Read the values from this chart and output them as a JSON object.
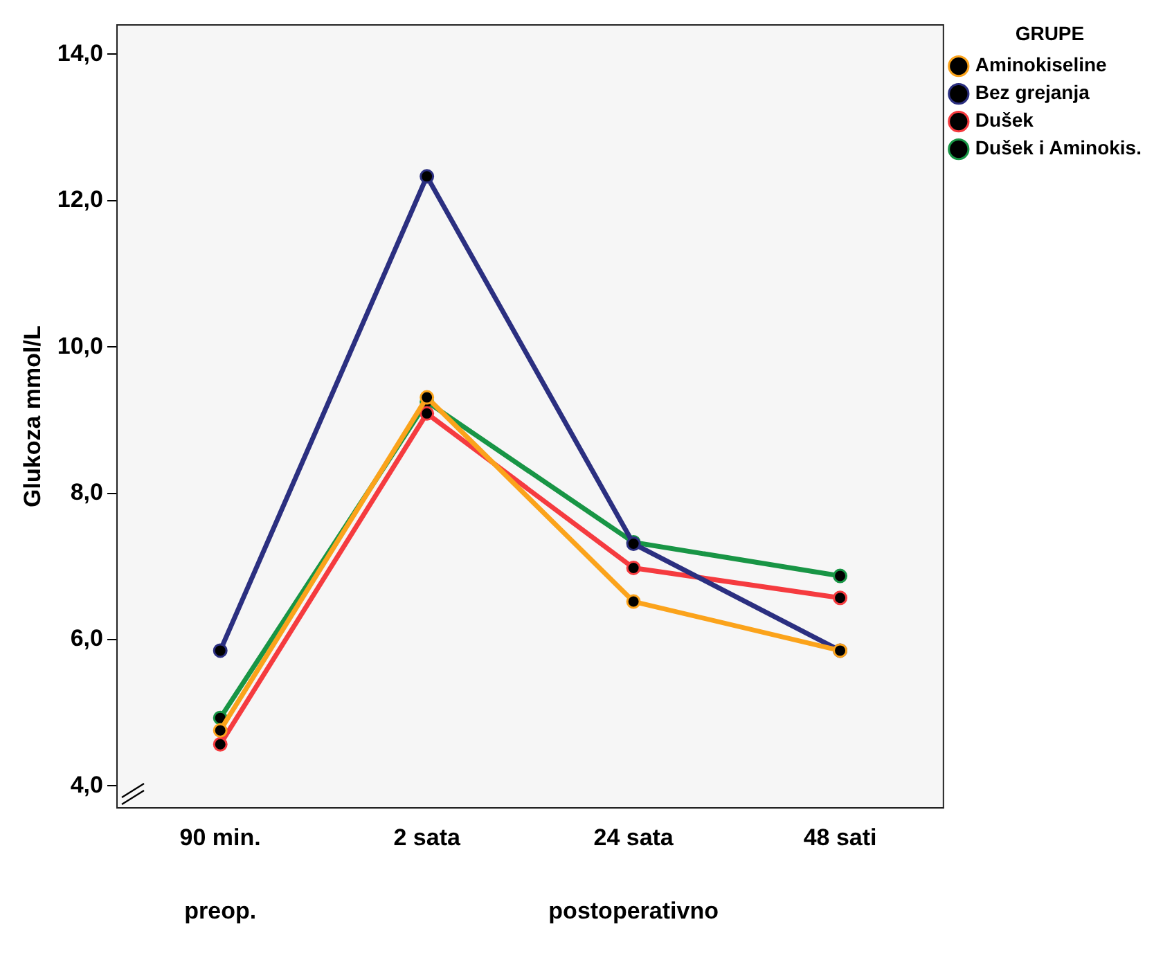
{
  "chart_data": {
    "type": "line",
    "ylabel": "Glukoza mmol/L",
    "legend_title": "GRUPE",
    "categories": [
      "90 min.",
      "2 sata",
      "24 sata",
      "48 sati"
    ],
    "series": [
      {
        "name": "Aminokiseline",
        "color": "#fba31b",
        "values": [
          4.76,
          9.31,
          6.52,
          5.85
        ]
      },
      {
        "name": "Bez grejanja",
        "color": "#2b2f80",
        "values": [
          5.85,
          12.33,
          7.31,
          5.85
        ]
      },
      {
        "name": "Dušek",
        "color": "#f53b3f",
        "values": [
          4.57,
          9.09,
          6.98,
          6.57
        ]
      },
      {
        "name": "Dušek i Aminokis.",
        "color": "#189545",
        "values": [
          4.93,
          9.25,
          7.33,
          6.87
        ]
      }
    ],
    "ylim": [
      3.7,
      14.4
    ],
    "yticks": [
      {
        "value": 4,
        "label": "4,0"
      },
      {
        "value": 6,
        "label": "6,0"
      },
      {
        "value": 8,
        "label": "8,0"
      },
      {
        "value": 10,
        "label": "10,0"
      },
      {
        "value": 12,
        "label": "12,0"
      },
      {
        "value": 14,
        "label": "14,0"
      }
    ],
    "grid": false,
    "legend": "top right",
    "marker": "circle",
    "line_style": "solid",
    "annotations": [
      "preop.",
      "postoperativno"
    ]
  }
}
